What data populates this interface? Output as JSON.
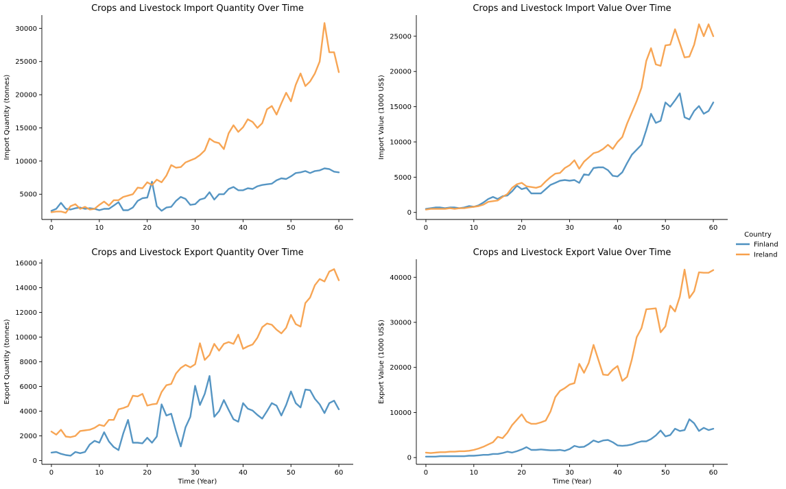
{
  "legend": {
    "title": "Country",
    "items": [
      {
        "label": "Finland",
        "color": "#4c8fc0"
      },
      {
        "label": "Ireland",
        "color": "#f7a04b"
      }
    ]
  },
  "chart_data": [
    {
      "type": "line",
      "title": "Crops and Livestock Import Quantity Over Time",
      "xlabel": "",
      "ylabel": "Import Quantity (tonnes)",
      "xlim": [
        -2,
        63
      ],
      "ylim": [
        1200,
        32000
      ],
      "xticks": [
        0,
        10,
        20,
        30,
        40,
        50,
        60
      ],
      "yticks": [
        5000,
        10000,
        15000,
        20000,
        25000,
        30000
      ],
      "x": [
        0,
        1,
        2,
        3,
        4,
        5,
        6,
        7,
        8,
        9,
        10,
        11,
        12,
        13,
        14,
        15,
        16,
        17,
        18,
        19,
        20,
        21,
        22,
        23,
        24,
        25,
        26,
        27,
        28,
        29,
        30,
        31,
        32,
        33,
        34,
        35,
        36,
        37,
        38,
        39,
        40,
        41,
        42,
        43,
        44,
        45,
        46,
        47,
        48,
        49,
        50,
        51,
        52,
        53,
        54,
        55,
        56,
        57,
        58,
        59,
        60
      ],
      "series": [
        {
          "name": "Finland",
          "values": [
            2500,
            2800,
            3700,
            2800,
            2700,
            2900,
            3000,
            2800,
            2900,
            2800,
            2600,
            2800,
            2800,
            3300,
            3800,
            2600,
            2600,
            3000,
            4000,
            4400,
            4500,
            6900,
            3200,
            2500,
            3000,
            3100,
            4000,
            4600,
            4300,
            3400,
            3500,
            4200,
            4400,
            5300,
            4200,
            5000,
            5000,
            5800,
            6100,
            5600,
            5600,
            5900,
            5800,
            6200,
            6400,
            6500,
            6600,
            7100,
            7400,
            7300,
            7700,
            8200,
            8300,
            8500,
            8200,
            8500,
            8600,
            8900,
            8800,
            8400,
            8300
          ]
        },
        {
          "name": "Ireland",
          "values": [
            2300,
            2400,
            2400,
            2200,
            3200,
            3500,
            2800,
            3100,
            2700,
            2800,
            3400,
            3900,
            3300,
            4100,
            4100,
            4600,
            4800,
            5000,
            6000,
            5900,
            6800,
            6400,
            7200,
            6800,
            7800,
            9400,
            9000,
            9100,
            9800,
            10100,
            10400,
            10900,
            11600,
            13400,
            12900,
            12700,
            11800,
            14200,
            15400,
            14400,
            15100,
            16300,
            15900,
            15000,
            15700,
            17800,
            18300,
            17000,
            18700,
            20300,
            19000,
            21500,
            23200,
            21300,
            22000,
            23200,
            25000,
            30800,
            26400,
            26400,
            23400
          ]
        }
      ]
    },
    {
      "type": "line",
      "title": "Crops and Livestock Import Value Over Time",
      "xlabel": "",
      "ylabel": "Import Value (1000 US$)",
      "xlim": [
        -2,
        63
      ],
      "ylim": [
        -1000,
        28000
      ],
      "xticks": [
        0,
        10,
        20,
        30,
        40,
        50,
        60
      ],
      "yticks": [
        0,
        5000,
        10000,
        15000,
        20000,
        25000
      ],
      "x": [
        0,
        1,
        2,
        3,
        4,
        5,
        6,
        7,
        8,
        9,
        10,
        11,
        12,
        13,
        14,
        15,
        16,
        17,
        18,
        19,
        20,
        21,
        22,
        23,
        24,
        25,
        26,
        27,
        28,
        29,
        30,
        31,
        32,
        33,
        34,
        35,
        36,
        37,
        38,
        39,
        40,
        41,
        42,
        43,
        44,
        45,
        46,
        47,
        48,
        49,
        50,
        51,
        52,
        53,
        54,
        55,
        56,
        57,
        58,
        59,
        60
      ],
      "series": [
        {
          "name": "Finland",
          "values": [
            500,
            600,
            700,
            700,
            600,
            700,
            700,
            600,
            700,
            900,
            800,
            1000,
            1400,
            1900,
            2200,
            1900,
            2300,
            2400,
            3000,
            3800,
            3300,
            3500,
            2700,
            2700,
            2700,
            3300,
            3900,
            4200,
            4500,
            4600,
            4500,
            4600,
            4200,
            5400,
            5300,
            6300,
            6400,
            6400,
            6000,
            5200,
            5100,
            5700,
            7000,
            8200,
            8900,
            9600,
            11700,
            14000,
            12700,
            13000,
            15600,
            15000,
            15900,
            16900,
            13500,
            13200,
            14400,
            15100,
            14000,
            14400,
            15600
          ]
        },
        {
          "name": "Ireland",
          "values": [
            400,
            500,
            500,
            500,
            500,
            600,
            500,
            600,
            600,
            700,
            800,
            900,
            1100,
            1500,
            1600,
            1700,
            2200,
            2600,
            3500,
            4000,
            4200,
            3700,
            3600,
            3500,
            3700,
            4400,
            5000,
            5500,
            5600,
            6300,
            6700,
            7400,
            6200,
            7200,
            7800,
            8400,
            8600,
            9000,
            9600,
            9000,
            10000,
            10700,
            12600,
            14200,
            15800,
            17700,
            21500,
            23300,
            21000,
            20800,
            23700,
            23800,
            26000,
            24000,
            22000,
            22100,
            23800,
            26700,
            25000,
            26700,
            25000
          ]
        }
      ]
    },
    {
      "type": "line",
      "title": "Crops and Livestock Export Quantity Over Time",
      "xlabel": "Time (Year)",
      "ylabel": "Export Quantity (tonnes)",
      "xlim": [
        -2,
        63
      ],
      "ylim": [
        -300,
        16300
      ],
      "xticks": [
        0,
        10,
        20,
        30,
        40,
        50,
        60
      ],
      "yticks": [
        0,
        2000,
        4000,
        6000,
        8000,
        10000,
        12000,
        14000,
        16000
      ],
      "x": [
        0,
        1,
        2,
        3,
        4,
        5,
        6,
        7,
        8,
        9,
        10,
        11,
        12,
        13,
        14,
        15,
        16,
        17,
        18,
        19,
        20,
        21,
        22,
        23,
        24,
        25,
        26,
        27,
        28,
        29,
        30,
        31,
        32,
        33,
        34,
        35,
        36,
        37,
        38,
        39,
        40,
        41,
        42,
        43,
        44,
        45,
        46,
        47,
        48,
        49,
        50,
        51,
        52,
        53,
        54,
        55,
        56,
        57,
        58,
        59,
        60
      ],
      "series": [
        {
          "name": "Finland",
          "values": [
            650,
            700,
            550,
            450,
            400,
            700,
            600,
            700,
            1300,
            1600,
            1450,
            2300,
            1550,
            1100,
            850,
            2200,
            3300,
            1450,
            1450,
            1400,
            1850,
            1450,
            1950,
            4550,
            3650,
            3800,
            2400,
            1150,
            2700,
            3550,
            6050,
            4500,
            5400,
            6850,
            3550,
            4000,
            4900,
            4100,
            3350,
            3150,
            4650,
            4200,
            4050,
            3700,
            3400,
            4000,
            4650,
            4450,
            3650,
            4500,
            5600,
            4650,
            4300,
            5750,
            5700,
            5000,
            4550,
            3850,
            4650,
            4850,
            4150
          ]
        },
        {
          "name": "Ireland",
          "values": [
            2350,
            2100,
            2500,
            1950,
            1900,
            2000,
            2400,
            2450,
            2500,
            2650,
            2900,
            2800,
            3300,
            3300,
            4150,
            4250,
            4400,
            5250,
            5200,
            5400,
            4450,
            4550,
            4600,
            5550,
            6100,
            6200,
            7050,
            7500,
            7750,
            7550,
            7800,
            9500,
            8150,
            8550,
            9450,
            8900,
            9450,
            9600,
            9450,
            10200,
            9050,
            9250,
            9400,
            9950,
            10800,
            11100,
            11000,
            10600,
            10300,
            10750,
            11800,
            11050,
            10850,
            12750,
            13200,
            14200,
            14700,
            14500,
            15300,
            15500,
            14600
          ]
        }
      ]
    },
    {
      "type": "line",
      "title": "Crops and Livestock Export Value Over Time",
      "xlabel": "Time (Year)",
      "ylabel": "Export Value (1000 US$)",
      "xlim": [
        -2,
        63
      ],
      "ylim": [
        -1500,
        44000
      ],
      "xticks": [
        0,
        10,
        20,
        30,
        40,
        50,
        60
      ],
      "yticks": [
        0,
        10000,
        20000,
        30000,
        40000
      ],
      "x": [
        0,
        1,
        2,
        3,
        4,
        5,
        6,
        7,
        8,
        9,
        10,
        11,
        12,
        13,
        14,
        15,
        16,
        17,
        18,
        19,
        20,
        21,
        22,
        23,
        24,
        25,
        26,
        27,
        28,
        29,
        30,
        31,
        32,
        33,
        34,
        35,
        36,
        37,
        38,
        39,
        40,
        41,
        42,
        43,
        44,
        45,
        46,
        47,
        48,
        49,
        50,
        51,
        52,
        53,
        54,
        55,
        56,
        57,
        58,
        59,
        60
      ],
      "series": [
        {
          "name": "Finland",
          "values": [
            200,
            200,
            200,
            300,
            300,
            300,
            300,
            300,
            300,
            400,
            400,
            500,
            600,
            600,
            800,
            800,
            1000,
            1300,
            1100,
            1400,
            1800,
            2300,
            1700,
            1700,
            1800,
            1700,
            1600,
            1600,
            1700,
            1500,
            1900,
            2600,
            2300,
            2400,
            3000,
            3800,
            3400,
            3800,
            3900,
            3400,
            2700,
            2600,
            2700,
            2900,
            3300,
            3600,
            3600,
            4100,
            4900,
            6000,
            4700,
            5000,
            6400,
            5900,
            6100,
            8500,
            7600,
            5900,
            6600,
            6100,
            6400
          ]
        },
        {
          "name": "Ireland",
          "values": [
            1100,
            1000,
            1100,
            1200,
            1200,
            1300,
            1300,
            1400,
            1400,
            1500,
            1700,
            2000,
            2400,
            2900,
            3400,
            4600,
            4300,
            5500,
            7200,
            8400,
            9600,
            8000,
            7500,
            7500,
            7800,
            8200,
            10200,
            13400,
            14800,
            15400,
            16200,
            16500,
            20800,
            18800,
            21000,
            25000,
            21700,
            18400,
            18300,
            19500,
            20300,
            17000,
            17900,
            21800,
            26700,
            28700,
            32900,
            33000,
            33100,
            27800,
            29100,
            33700,
            32400,
            35700,
            41700,
            35400,
            36900,
            41100,
            41000,
            41000,
            41600
          ]
        }
      ]
    }
  ]
}
